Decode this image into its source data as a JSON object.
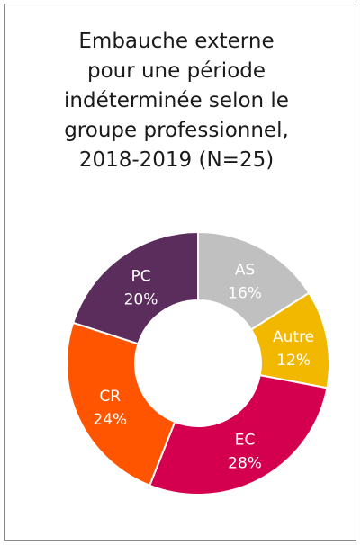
{
  "chart_data": {
    "type": "pie",
    "title_lines": [
      "Embauche externe",
      "pour une période",
      "indéterminée selon le",
      "groupe professionnel,",
      "2018-2019 (N=25)"
    ],
    "slices": [
      {
        "label": "PC",
        "value": 20,
        "display": "20%",
        "color": "#5b2d5c"
      },
      {
        "label": "AS",
        "value": 16,
        "display": "16%",
        "color": "#c0c0c0"
      },
      {
        "label": "Autre",
        "value": 12,
        "display": "12%",
        "color": "#f2b800"
      },
      {
        "label": "EC",
        "value": 28,
        "display": "28%",
        "color": "#d4004f"
      },
      {
        "label": "CR",
        "value": 24,
        "display": "24%",
        "color": "#ff5500"
      }
    ]
  }
}
